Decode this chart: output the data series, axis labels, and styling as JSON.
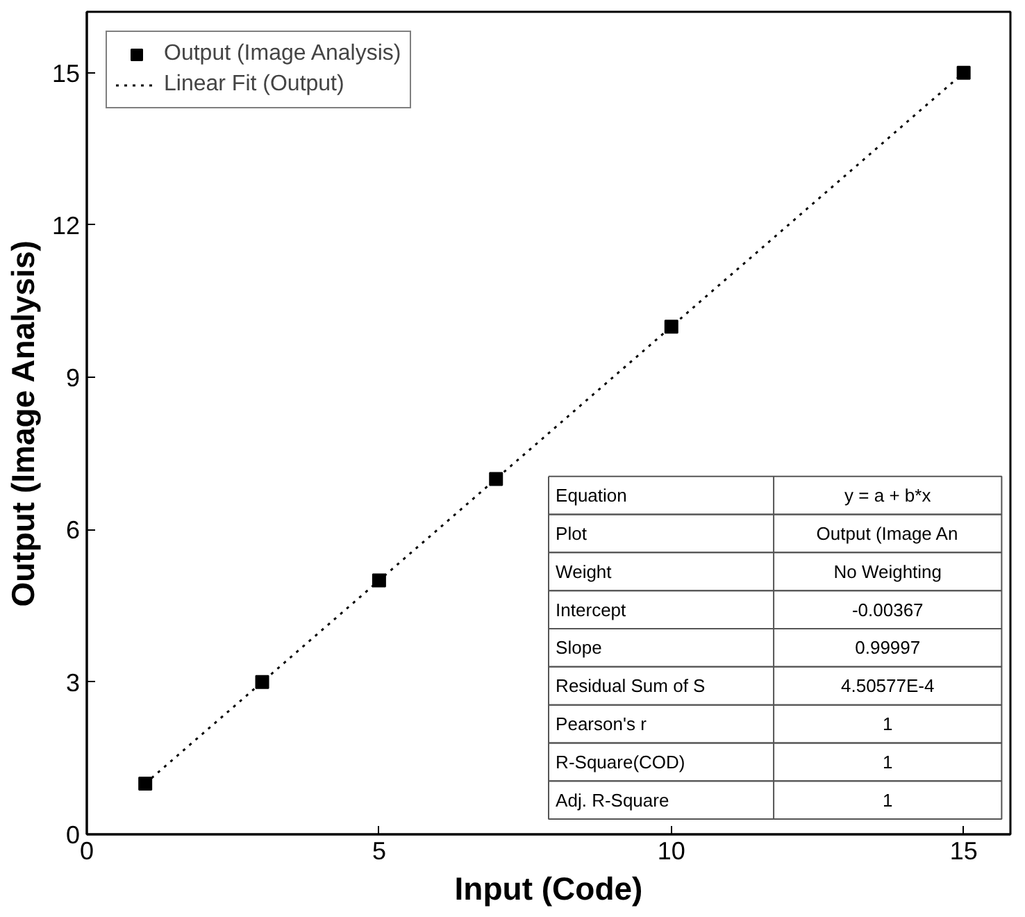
{
  "chart_data": {
    "type": "scatter",
    "xlabel": "Input (Code)",
    "ylabel": "Output (Image Analysis)",
    "xlim": [
      0,
      15.8
    ],
    "ylim": [
      0,
      16.2
    ],
    "xticks": [
      0,
      5,
      10,
      15
    ],
    "yticks": [
      0,
      3,
      6,
      9,
      12,
      15
    ],
    "grid": false,
    "legend": "top left",
    "series": [
      {
        "name": "Output (Image Analysis)",
        "marker": "square",
        "color": "#000000",
        "x": [
          1,
          3,
          5,
          7,
          10,
          15
        ],
        "values": [
          1,
          3,
          5,
          7,
          10,
          15
        ]
      },
      {
        "name": "Linear Fit (Output)",
        "type": "line",
        "line_style": "dotted",
        "color": "#000000",
        "x": [
          1,
          15
        ],
        "values": [
          1,
          15
        ]
      }
    ],
    "annotations": [
      "Equation",
      "y = a + b*x",
      "Plot",
      "Output (Image An",
      "Weight",
      "No Weighting",
      "Intercept",
      "-0.00367",
      "Slope",
      "0.99997",
      "Residual Sum of S",
      "4.50577E-4",
      "Pearson's r",
      "1",
      "R-Square(COD)",
      "1",
      "Adj. R-Square",
      "1"
    ]
  }
}
